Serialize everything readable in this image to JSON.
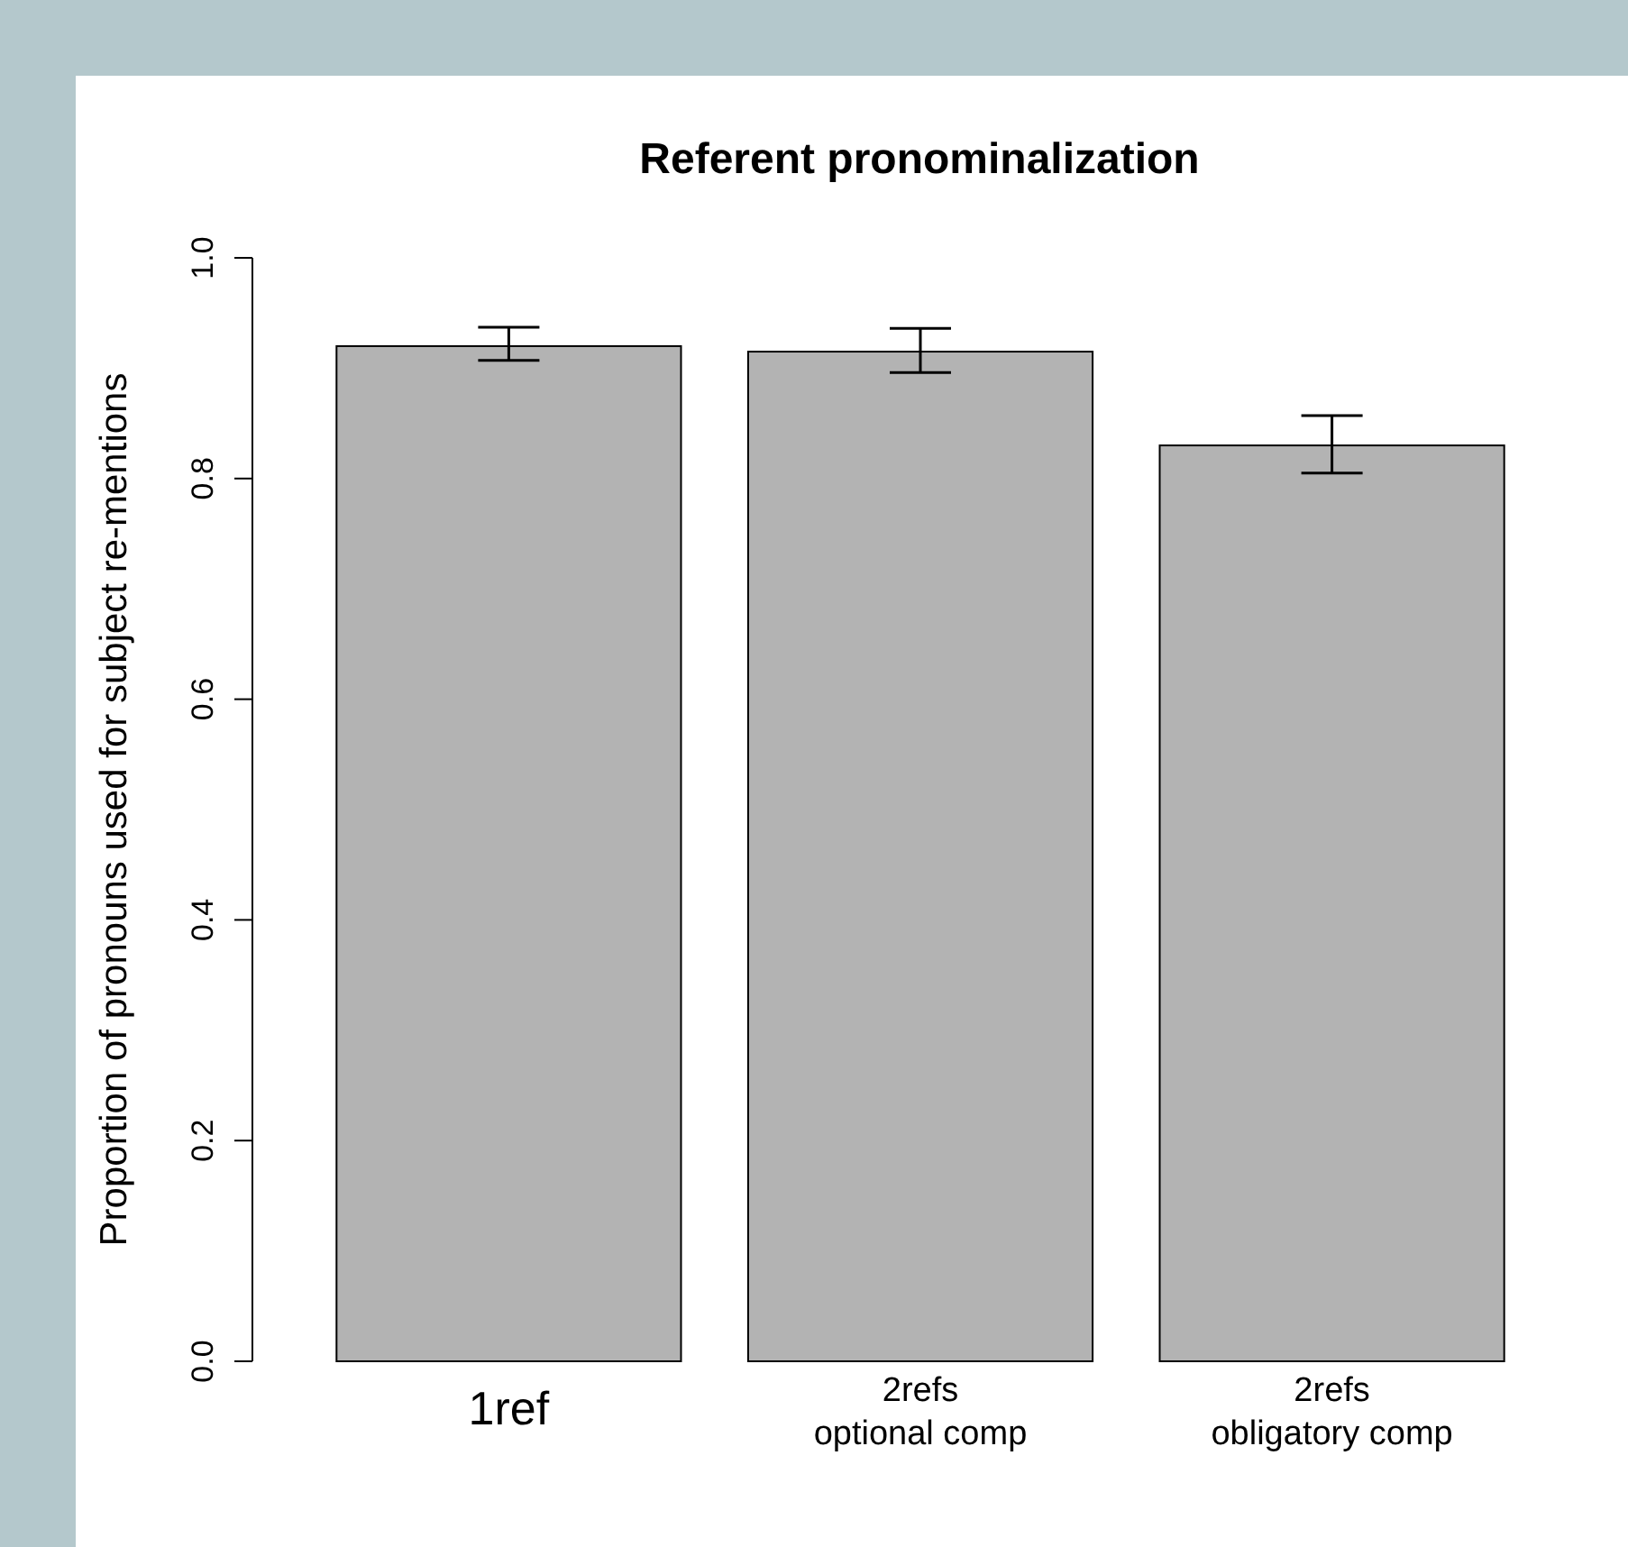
{
  "chart_data": {
    "type": "bar",
    "title": "Referent pronominalization",
    "ylabel": "Proportion of pronouns used for subject re-mentions",
    "categories": [
      "1ref",
      "2refs\noptional comp",
      "2refs\nobligatory comp"
    ],
    "values": [
      0.92,
      0.915,
      0.83
    ],
    "errors": [
      [
        0.907,
        0.937
      ],
      [
        0.896,
        0.936
      ],
      [
        0.805,
        0.857
      ]
    ],
    "color": "#b3b3b3",
    "ylim": [
      0,
      1
    ],
    "yticks": [
      {
        "value": 0,
        "label": "0.0"
      },
      {
        "value": 0.2,
        "label": "0.2"
      },
      {
        "value": 0.4,
        "label": "0.4"
      },
      {
        "value": 0.6,
        "label": "0.6"
      },
      {
        "value": 0.8,
        "label": "0.8"
      },
      {
        "value": 1,
        "label": "1.0"
      }
    ],
    "grid": false
  }
}
